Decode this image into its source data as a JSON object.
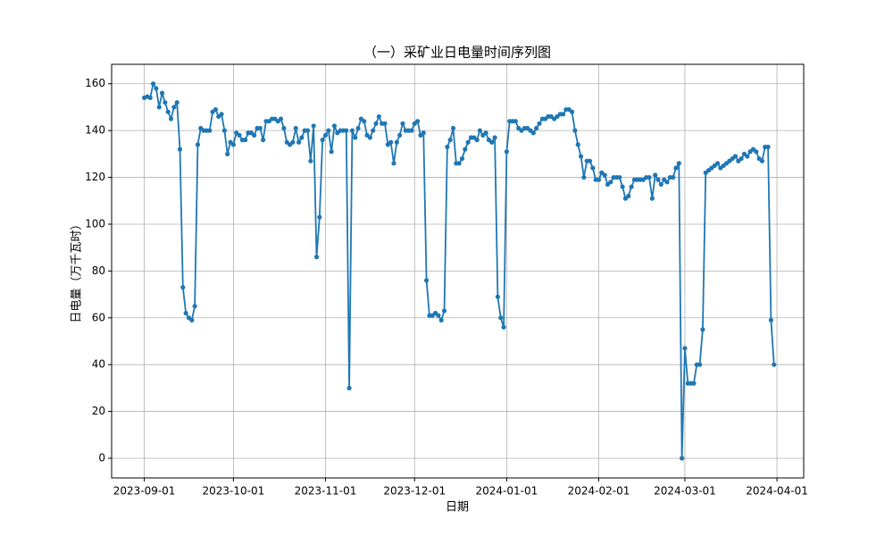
{
  "chart_data": {
    "type": "line",
    "title": "（一）采矿业日电量时间序列图",
    "x_label": "日期",
    "y_label": "日电量（万千瓦时）",
    "x": [
      "2023-09-01",
      "2023-09-02",
      "2023-09-03",
      "2023-09-04",
      "2023-09-05",
      "2023-09-06",
      "2023-09-07",
      "2023-09-08",
      "2023-09-09",
      "2023-09-10",
      "2023-09-11",
      "2023-09-12",
      "2023-09-13",
      "2023-09-14",
      "2023-09-15",
      "2023-09-16",
      "2023-09-17",
      "2023-09-18",
      "2023-09-19",
      "2023-09-20",
      "2023-09-21",
      "2023-09-22",
      "2023-09-23",
      "2023-09-24",
      "2023-09-25",
      "2023-09-26",
      "2023-09-27",
      "2023-09-28",
      "2023-09-29",
      "2023-09-30",
      "2023-10-01",
      "2023-10-02",
      "2023-10-03",
      "2023-10-04",
      "2023-10-05",
      "2023-10-06",
      "2023-10-07",
      "2023-10-08",
      "2023-10-09",
      "2023-10-10",
      "2023-10-11",
      "2023-10-12",
      "2023-10-13",
      "2023-10-14",
      "2023-10-15",
      "2023-10-16",
      "2023-10-17",
      "2023-10-18",
      "2023-10-19",
      "2023-10-20",
      "2023-10-21",
      "2023-10-22",
      "2023-10-23",
      "2023-10-24",
      "2023-10-25",
      "2023-10-26",
      "2023-10-27",
      "2023-10-28",
      "2023-10-29",
      "2023-10-30",
      "2023-10-31",
      "2023-11-01",
      "2023-11-02",
      "2023-11-03",
      "2023-11-04",
      "2023-11-05",
      "2023-11-06",
      "2023-11-07",
      "2023-11-08",
      "2023-11-09",
      "2023-11-10",
      "2023-11-11",
      "2023-11-12",
      "2023-11-13",
      "2023-11-14",
      "2023-11-15",
      "2023-11-16",
      "2023-11-17",
      "2023-11-18",
      "2023-11-19",
      "2023-11-20",
      "2023-11-21",
      "2023-11-22",
      "2023-11-23",
      "2023-11-24",
      "2023-11-25",
      "2023-11-26",
      "2023-11-27",
      "2023-11-28",
      "2023-11-29",
      "2023-11-30",
      "2023-12-01",
      "2023-12-02",
      "2023-12-03",
      "2023-12-04",
      "2023-12-05",
      "2023-12-06",
      "2023-12-07",
      "2023-12-08",
      "2023-12-09",
      "2023-12-10",
      "2023-12-11",
      "2023-12-12",
      "2023-12-13",
      "2023-12-14",
      "2023-12-15",
      "2023-12-16",
      "2023-12-17",
      "2023-12-18",
      "2023-12-19",
      "2023-12-20",
      "2023-12-21",
      "2023-12-22",
      "2023-12-23",
      "2023-12-24",
      "2023-12-25",
      "2023-12-26",
      "2023-12-27",
      "2023-12-28",
      "2023-12-29",
      "2023-12-30",
      "2023-12-31",
      "2024-01-01",
      "2024-01-02",
      "2024-01-03",
      "2024-01-04",
      "2024-01-05",
      "2024-01-06",
      "2024-01-07",
      "2024-01-08",
      "2024-01-09",
      "2024-01-10",
      "2024-01-11",
      "2024-01-12",
      "2024-01-13",
      "2024-01-14",
      "2024-01-15",
      "2024-01-16",
      "2024-01-17",
      "2024-01-18",
      "2024-01-19",
      "2024-01-20",
      "2024-01-21",
      "2024-01-22",
      "2024-01-23",
      "2024-01-24",
      "2024-01-25",
      "2024-01-26",
      "2024-01-27",
      "2024-01-28",
      "2024-01-29",
      "2024-01-30",
      "2024-01-31",
      "2024-02-01",
      "2024-02-02",
      "2024-02-03",
      "2024-02-04",
      "2024-02-05",
      "2024-02-06",
      "2024-02-07",
      "2024-02-08",
      "2024-02-09",
      "2024-02-10",
      "2024-02-11",
      "2024-02-12",
      "2024-02-13",
      "2024-02-14",
      "2024-02-15",
      "2024-02-16",
      "2024-02-17",
      "2024-02-18",
      "2024-02-19",
      "2024-02-20",
      "2024-02-21",
      "2024-02-22",
      "2024-02-23",
      "2024-02-24",
      "2024-02-25",
      "2024-02-26",
      "2024-02-27",
      "2024-02-28",
      "2024-02-29",
      "2024-03-01",
      "2024-03-02",
      "2024-03-03",
      "2024-03-04",
      "2024-03-05",
      "2024-03-06",
      "2024-03-07",
      "2024-03-08",
      "2024-03-09",
      "2024-03-10",
      "2024-03-11",
      "2024-03-12",
      "2024-03-13",
      "2024-03-14",
      "2024-03-15",
      "2024-03-16",
      "2024-03-17",
      "2024-03-18",
      "2024-03-19",
      "2024-03-20",
      "2024-03-21",
      "2024-03-22",
      "2024-03-23",
      "2024-03-24",
      "2024-03-25",
      "2024-03-26",
      "2024-03-27",
      "2024-03-28",
      "2024-03-29",
      "2024-03-30",
      "2024-03-31"
    ],
    "series": [
      {
        "color": "#1f77b4",
        "values": [
          154,
          154.5,
          154,
          160,
          158,
          150,
          156,
          152,
          148,
          145,
          150,
          152,
          132,
          73,
          62,
          60,
          59,
          65,
          134,
          141,
          140,
          140,
          140,
          148,
          149,
          146,
          147,
          140,
          130,
          135,
          134,
          139,
          138,
          136,
          136,
          139,
          139,
          138,
          141,
          141,
          136,
          144,
          144,
          145,
          145,
          144,
          145,
          141,
          135,
          134,
          135,
          141,
          135,
          137,
          140,
          140,
          127,
          142,
          86,
          103,
          136,
          138,
          140,
          131,
          142,
          139,
          140,
          140,
          140,
          30,
          140,
          137,
          141,
          145,
          144,
          138,
          137,
          140,
          143,
          146,
          143,
          143,
          134,
          135,
          126,
          135,
          138,
          143,
          140,
          140,
          140,
          143,
          144,
          138,
          139,
          76,
          61,
          61,
          62,
          61,
          59,
          63,
          133,
          136,
          141,
          126,
          126,
          128,
          132,
          135,
          137,
          137,
          136,
          140,
          138,
          139,
          136,
          135,
          137,
          69,
          60,
          56,
          131,
          144,
          144,
          144,
          141,
          140,
          141,
          141,
          140,
          139,
          141,
          143,
          145,
          145,
          146,
          146,
          145,
          146,
          147,
          147,
          149,
          149,
          148,
          140,
          134,
          129,
          120,
          127,
          127,
          124,
          119,
          119,
          122,
          121,
          117,
          118,
          120,
          120,
          120,
          116,
          111,
          112,
          116,
          119,
          119,
          119,
          119,
          120,
          120,
          111,
          121,
          119,
          117,
          119,
          118,
          120,
          120,
          124,
          126,
          0,
          47,
          32,
          32,
          32,
          40,
          40,
          55,
          122,
          123,
          124,
          125,
          126,
          124,
          125,
          126,
          127,
          128,
          129,
          127,
          128,
          130,
          129,
          131,
          132,
          131,
          128,
          127,
          133,
          133,
          59,
          40
        ]
      }
    ],
    "xlim": [
      "2023-08-21",
      "2024-04-10"
    ],
    "xticks": [
      "2023-09-01",
      "2023-10-01",
      "2023-11-01",
      "2023-12-01",
      "2024-01-01",
      "2024-02-01",
      "2024-03-01",
      "2024-04-01"
    ],
    "ylim": [
      -8.4,
      168.3
    ],
    "yticks": [
      0,
      20,
      40,
      60,
      80,
      100,
      120,
      140,
      160
    ],
    "grid": true
  }
}
